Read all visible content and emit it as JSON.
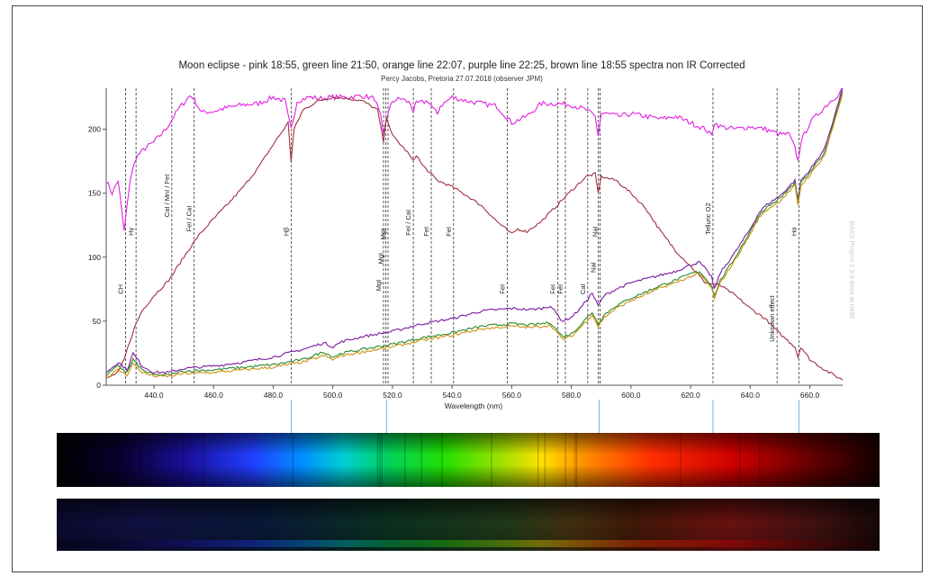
{
  "chart_data": {
    "type": "line",
    "title": "Moon eclipse - pink 18:55, green line 21:50, orange line 22:07, purple line 22:25, brown line 18:55 spectra non IR Corrected",
    "subtitle": "Percy Jacobs, Pretoria 27.07.2018 (observer JPM)",
    "xlabel": "Wavelength (nm)",
    "ylabel": "",
    "watermark": "BASS Project 1.9.8 Beta at 0480",
    "xlim": [
      424,
      671
    ],
    "ylim": [
      0,
      232
    ],
    "x_ticks": [
      440,
      460,
      480,
      500,
      520,
      540,
      560,
      580,
      600,
      620,
      640,
      660
    ],
    "x_tick_labels": [
      "440.0",
      "460.0",
      "480.0",
      "500.0",
      "520.0",
      "540.0",
      "560.0",
      "580.0",
      "600.0",
      "620.0",
      "640.0",
      "660.0"
    ],
    "y_ticks": [
      0,
      50,
      100,
      150,
      200
    ],
    "y_tick_labels": [
      "0",
      "50",
      "100",
      "150",
      "200"
    ],
    "grid": false,
    "series": [
      {
        "color": "#e020e0",
        "x": [
          424,
          426,
          428,
          429,
          430,
          431,
          432,
          434,
          437,
          440,
          444,
          448,
          452,
          453,
          456,
          460,
          465,
          470,
          475,
          480,
          484,
          485,
          486,
          488,
          492,
          496,
          500,
          505,
          510,
          514,
          516,
          517,
          518,
          520,
          523,
          526,
          527,
          528,
          532,
          534,
          535,
          536,
          540,
          545,
          550,
          555,
          560,
          565,
          570,
          575,
          580,
          585,
          588,
          589,
          590,
          592,
          596,
          600,
          605,
          610,
          615,
          620,
          625,
          627,
          628,
          630,
          635,
          640,
          645,
          650,
          653,
          655,
          656,
          657,
          660,
          664,
          667,
          670,
          671
        ],
        "y": [
          160,
          150,
          160,
          140,
          120,
          140,
          160,
          178,
          185,
          190,
          200,
          215,
          226,
          225,
          213,
          214,
          217,
          219,
          220,
          225,
          222,
          210,
          200,
          222,
          225,
          224,
          225,
          225,
          226,
          224,
          210,
          195,
          208,
          222,
          224,
          220,
          214,
          220,
          222,
          215,
          212,
          218,
          225,
          222,
          220,
          218,
          205,
          210,
          220,
          220,
          219,
          215,
          210,
          195,
          212,
          212,
          210,
          212,
          210,
          208,
          210,
          205,
          200,
          195,
          205,
          202,
          200,
          202,
          200,
          196,
          196,
          185,
          175,
          190,
          205,
          215,
          222,
          228,
          235
        ]
      },
      {
        "color": "#a03040",
        "x": [
          424,
          428,
          430,
          432,
          434,
          436,
          438,
          440,
          445,
          450,
          455,
          460,
          465,
          470,
          475,
          480,
          485,
          486,
          487,
          490,
          495,
          500,
          505,
          510,
          515,
          517,
          518,
          520,
          525,
          527,
          528,
          530,
          535,
          540,
          545,
          550,
          555,
          558,
          560,
          562,
          565,
          570,
          575,
          580,
          585,
          588,
          589,
          590,
          595,
          600,
          605,
          610,
          615,
          620,
          625,
          630,
          635,
          640,
          645,
          650,
          655,
          656,
          657,
          660,
          665,
          671
        ],
        "y": [
          5,
          10,
          20,
          35,
          48,
          58,
          64,
          70,
          82,
          100,
          117,
          130,
          142,
          155,
          170,
          188,
          205,
          175,
          200,
          215,
          222,
          225,
          224,
          222,
          215,
          190,
          210,
          195,
          182,
          175,
          180,
          172,
          160,
          155,
          148,
          140,
          128,
          122,
          118,
          122,
          120,
          128,
          140,
          152,
          163,
          165,
          150,
          163,
          160,
          150,
          138,
          120,
          105,
          93,
          80,
          78,
          70,
          60,
          52,
          40,
          30,
          22,
          30,
          20,
          12,
          4
        ]
      },
      {
        "color": "#7a1aa0",
        "x": [
          424,
          428,
          431,
          433,
          436,
          440,
          445,
          450,
          460,
          470,
          480,
          490,
          497,
          500,
          503,
          510,
          520,
          530,
          540,
          550,
          560,
          566,
          570,
          573,
          577,
          580,
          583,
          587,
          589,
          591,
          595,
          600,
          605,
          610,
          615,
          620,
          623,
          627,
          628,
          630,
          635,
          640,
          643,
          645,
          650,
          655,
          656,
          657,
          660,
          665,
          671
        ],
        "y": [
          10,
          18,
          12,
          25,
          15,
          10,
          10,
          13,
          15,
          18,
          22,
          28,
          33,
          30,
          34,
          38,
          42,
          48,
          52,
          58,
          60,
          59,
          60,
          62,
          50,
          53,
          60,
          72,
          62,
          70,
          75,
          80,
          83,
          86,
          89,
          94,
          96,
          85,
          75,
          88,
          104,
          122,
          135,
          140,
          148,
          160,
          145,
          160,
          168,
          185,
          232
        ]
      },
      {
        "color": "#2a8a2a",
        "x": [
          424,
          428,
          431,
          433,
          436,
          440,
          445,
          450,
          460,
          470,
          480,
          490,
          497,
          500,
          503,
          510,
          520,
          530,
          540,
          550,
          560,
          566,
          570,
          573,
          577,
          580,
          583,
          587,
          589,
          591,
          595,
          600,
          605,
          610,
          615,
          620,
          623,
          627,
          628,
          630,
          635,
          640,
          643,
          645,
          650,
          655,
          656,
          657,
          660,
          665,
          671
        ],
        "y": [
          8,
          15,
          10,
          20,
          12,
          8,
          8,
          11,
          12,
          14,
          16,
          20,
          26,
          22,
          25,
          28,
          32,
          37,
          41,
          46,
          48,
          47,
          48,
          49,
          38,
          40,
          47,
          57,
          48,
          55,
          62,
          68,
          73,
          78,
          82,
          87,
          89,
          78,
          70,
          82,
          100,
          120,
          133,
          138,
          146,
          158,
          142,
          158,
          166,
          182,
          230
        ]
      },
      {
        "color": "#d09010",
        "x": [
          424,
          428,
          431,
          433,
          436,
          440,
          445,
          450,
          460,
          470,
          480,
          490,
          497,
          500,
          503,
          510,
          520,
          530,
          540,
          550,
          560,
          566,
          570,
          573,
          577,
          580,
          583,
          587,
          589,
          591,
          595,
          600,
          605,
          610,
          615,
          620,
          623,
          627,
          628,
          630,
          635,
          640,
          643,
          645,
          650,
          655,
          656,
          657,
          660,
          665,
          671
        ],
        "y": [
          6,
          12,
          8,
          17,
          10,
          7,
          7,
          9,
          10,
          12,
          14,
          18,
          23,
          20,
          23,
          26,
          30,
          35,
          39,
          44,
          46,
          45,
          46,
          47,
          36,
          38,
          45,
          55,
          46,
          53,
          60,
          66,
          71,
          76,
          80,
          85,
          87,
          76,
          68,
          80,
          98,
          118,
          131,
          136,
          144,
          156,
          140,
          156,
          164,
          180,
          228
        ]
      }
    ],
    "line_markers": [
      {
        "x": 430.5,
        "label": "CH",
        "label_y": 75
      },
      {
        "x": 434.0,
        "label": "Hγ",
        "label_y": 120
      },
      {
        "x": 446.0,
        "label": "CaI / MnI / FeI",
        "label_y": 148
      },
      {
        "x": 453.5,
        "label": "FeI / CaI",
        "label_y": 130
      },
      {
        "x": 486.1,
        "label": "Hβ",
        "label_y": 120
      },
      {
        "x": 517.0,
        "label": "MgI",
        "label_y": 78
      },
      {
        "x": 517.8,
        "label": "MgI",
        "label_y": 99
      },
      {
        "x": 518.5,
        "label": "MgI",
        "label_y": 118
      },
      {
        "x": 527.0,
        "label": "FeI / CaI",
        "label_y": 127
      },
      {
        "x": 533.0,
        "label": "FeI",
        "label_y": 120
      },
      {
        "x": 540.5,
        "label": "FeI",
        "label_y": 120
      },
      {
        "x": 558.5,
        "label": "FeI",
        "label_y": 75
      },
      {
        "x": 575.5,
        "label": "FeI",
        "label_y": 75
      },
      {
        "x": 578.0,
        "label": "FeI",
        "label_y": 75
      },
      {
        "x": 585.5,
        "label": "CaI",
        "label_y": 75
      },
      {
        "x": 589.0,
        "label": "NaI",
        "label_y": 92
      },
      {
        "x": 589.6,
        "label": "NaI",
        "label_y": 120
      },
      {
        "x": 627.5,
        "label": "Telluric O2",
        "label_y": 130
      },
      {
        "x": 649.0,
        "label": "Unknown effect",
        "label_y": 52
      },
      {
        "x": 656.3,
        "label": "Hα",
        "label_y": 120
      }
    ],
    "spectrum_ticks": [
      486.1,
      518.0,
      589.3,
      627.5,
      656.3
    ]
  }
}
